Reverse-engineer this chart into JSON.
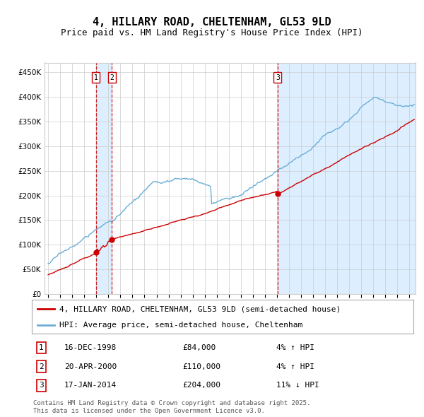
{
  "title": "4, HILLARY ROAD, CHELTENHAM, GL53 9LD",
  "subtitle": "Price paid vs. HM Land Registry's House Price Index (HPI)",
  "ylim": [
    0,
    470000
  ],
  "yticks": [
    0,
    50000,
    100000,
    150000,
    200000,
    250000,
    300000,
    350000,
    400000,
    450000
  ],
  "xlim_start": 1994.7,
  "xlim_end": 2025.5,
  "background_color": "#ffffff",
  "plot_bg_color": "#ffffff",
  "grid_color": "#cccccc",
  "hpi_line_color": "#6baed6",
  "price_line_color": "#cc0000",
  "sale_marker_color": "#cc0000",
  "vline_color": "#cc0000",
  "shade_color": "#ddeeff",
  "transactions": [
    {
      "label": "1",
      "date_year": 1998.96,
      "price": 84000,
      "pct": "4%",
      "direction": "↑",
      "date_str": "16-DEC-1998"
    },
    {
      "label": "2",
      "date_year": 2000.3,
      "price": 110000,
      "pct": "4%",
      "direction": "↑",
      "date_str": "20-APR-2000"
    },
    {
      "label": "3",
      "date_year": 2014.05,
      "price": 204000,
      "pct": "11%",
      "direction": "↓",
      "date_str": "17-JAN-2014"
    }
  ],
  "legend_entries": [
    {
      "label": "4, HILLARY ROAD, CHELTENHAM, GL53 9LD (semi-detached house)",
      "color": "#cc0000"
    },
    {
      "label": "HPI: Average price, semi-detached house, Cheltenham",
      "color": "#6baed6"
    }
  ],
  "footnote": "Contains HM Land Registry data © Crown copyright and database right 2025.\nThis data is licensed under the Open Government Licence v3.0.",
  "title_fontsize": 11,
  "subtitle_fontsize": 9,
  "tick_fontsize": 7.5,
  "legend_fontsize": 8,
  "footnote_fontsize": 6.5
}
